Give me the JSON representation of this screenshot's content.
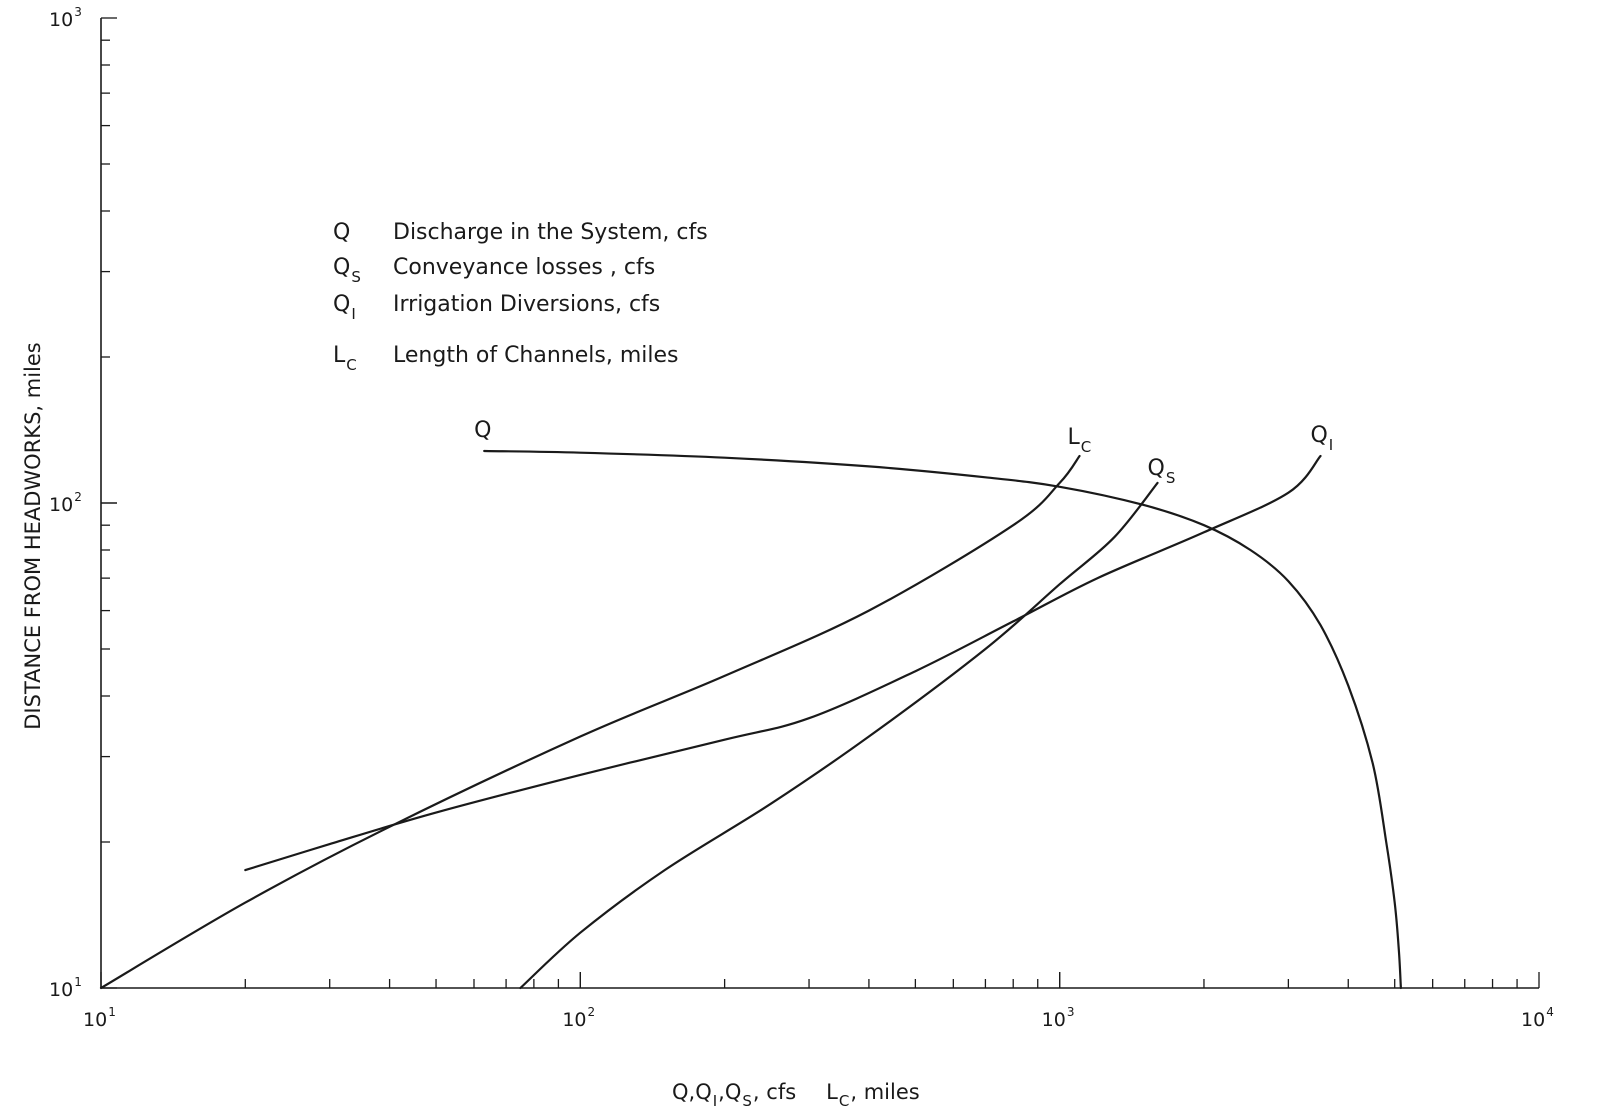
{
  "chart_data": {
    "type": "line",
    "title": "",
    "xscale": "log",
    "yscale": "log",
    "xlim": [
      10,
      10000
    ],
    "ylim": [
      10,
      1000
    ],
    "xticks": [
      {
        "base": "10",
        "exp": "1"
      },
      {
        "base": "10",
        "exp": "2"
      },
      {
        "base": "10",
        "exp": "3"
      },
      {
        "base": "10",
        "exp": "4"
      }
    ],
    "yticks": [
      {
        "base": "10",
        "exp": "1"
      },
      {
        "base": "10",
        "exp": "2"
      },
      {
        "base": "10",
        "exp": "3"
      }
    ],
    "xlabel": {
      "part1": "Q,Q",
      "sub1": "I",
      "part2": ",Q",
      "sub2": "S",
      "part3": ", cfs",
      "part4": "L",
      "sub4": "C",
      "part5": ", miles"
    },
    "ylabel": "DISTANCE FROM HEADWORKS, miles",
    "legend_placement": "upper-left",
    "legend": [
      {
        "symbol": "Q",
        "sub": "",
        "text": "Discharge in the System, cfs"
      },
      {
        "symbol": "Q",
        "sub": "S",
        "text": "Conveyance losses , cfs"
      },
      {
        "symbol": "Q",
        "sub": "I",
        "text": "Irrigation Diversions, cfs"
      },
      {
        "symbol": "L",
        "sub": "C",
        "text": "Length of Channels, miles"
      }
    ],
    "series": [
      {
        "id": "Q",
        "name": "Q",
        "sub": "",
        "x": [
          63,
          100,
          200,
          400,
          700,
          1000,
          1500,
          2000,
          2500,
          3000,
          3500,
          4000,
          4500,
          4800,
          5000,
          5100,
          5150
        ],
        "y": [
          128,
          127,
          124,
          119,
          113,
          108,
          99,
          90,
          80,
          69,
          56,
          42,
          29,
          20,
          15,
          12,
          10
        ]
      },
      {
        "id": "LC",
        "name": "L",
        "sub": "C",
        "x": [
          10,
          20,
          40,
          100,
          200,
          400,
          800,
          1000,
          1100
        ],
        "y": [
          10,
          15,
          21.5,
          33,
          44,
          60,
          90,
          110,
          125
        ]
      },
      {
        "id": "QS",
        "name": "Q",
        "sub": "S",
        "x": [
          75,
          100,
          150,
          250,
          400,
          700,
          1000,
          1300,
          1600
        ],
        "y": [
          10,
          13,
          17.5,
          24,
          33,
          50,
          68,
          85,
          110
        ]
      },
      {
        "id": "QI",
        "name": "Q",
        "sub": "I",
        "x": [
          20,
          30,
          50,
          100,
          200,
          300,
          500,
          800,
          1200,
          2000,
          3000,
          3500
        ],
        "y": [
          17.5,
          19.8,
          23,
          27.5,
          32.5,
          36,
          45,
          57,
          70,
          87,
          105,
          125
        ]
      }
    ]
  }
}
